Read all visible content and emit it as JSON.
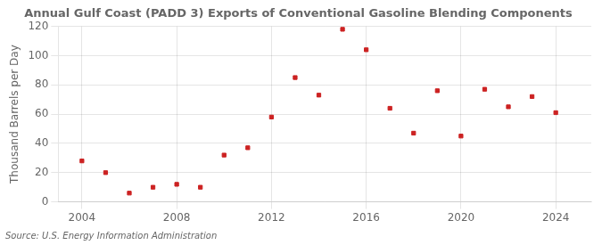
{
  "chart_data": {
    "type": "scatter",
    "title": "Annual Gulf Coast (PADD 3) Exports of Conventional Gasoline Blending Components",
    "ylabel": "Thousand Barrels per Day",
    "source": "Source: U.S. Energy Information Administration",
    "x": [
      2004,
      2005,
      2006,
      2007,
      2008,
      2009,
      2010,
      2011,
      2012,
      2013,
      2014,
      2015,
      2016,
      2017,
      2018,
      2019,
      2020,
      2021,
      2022,
      2023,
      2024
    ],
    "values": [
      28,
      20,
      6,
      10,
      12,
      10,
      32,
      37,
      58,
      85,
      73,
      118,
      104,
      64,
      47,
      76,
      45,
      77,
      65,
      72,
      61
    ],
    "color": "#cc2222",
    "marker": "square",
    "xlim": [
      2003.0,
      2025.5
    ],
    "xticks": [
      2004,
      2008,
      2012,
      2016,
      2020,
      2024
    ],
    "ylim": [
      0,
      120
    ],
    "yticks": [
      0,
      20,
      40,
      60,
      80,
      100,
      120
    ],
    "grid": true
  }
}
